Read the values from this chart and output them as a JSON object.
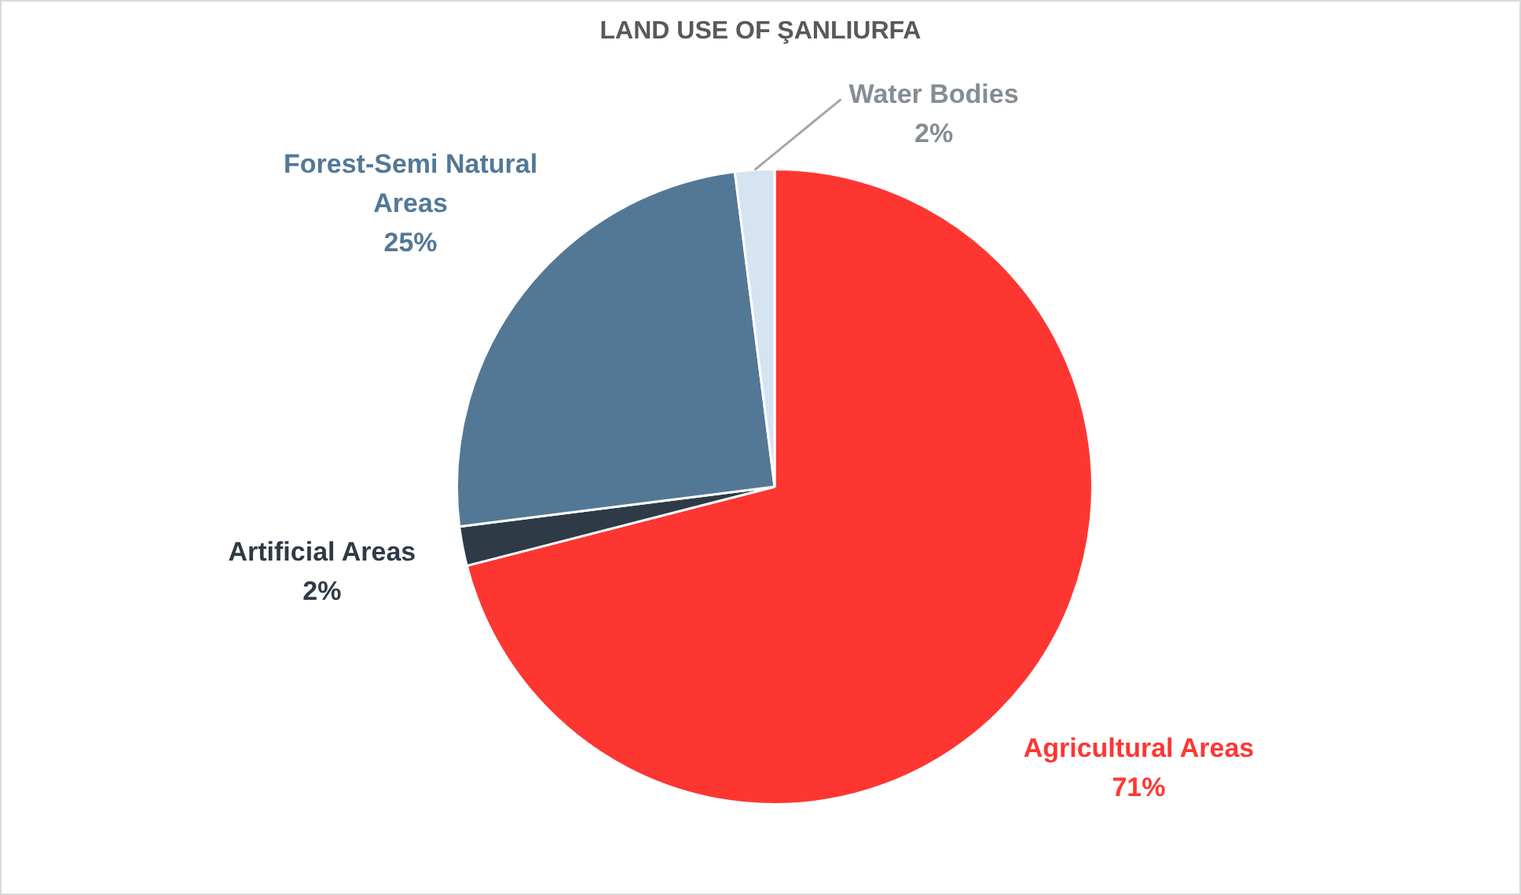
{
  "chart_data": {
    "type": "pie",
    "title": "LAND USE OF ŞANLIURFA",
    "categories": [
      "Agricultural Areas",
      "Artificial Areas",
      "Forest-Semi Natural Areas",
      "Water Bodies"
    ],
    "values": [
      71,
      2,
      25,
      2
    ],
    "colors": [
      "#fe3632",
      "#2e3a46",
      "#537896",
      "#d6e3f0"
    ],
    "value_labels": [
      "71%",
      "2%",
      "25%",
      "2%"
    ],
    "legend": false
  }
}
